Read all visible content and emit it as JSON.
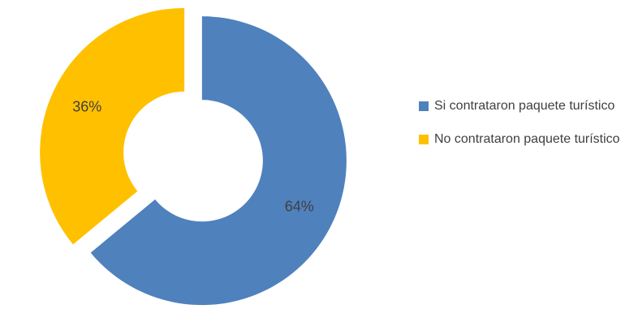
{
  "chart_data": {
    "type": "pie",
    "variant": "donut-exploded",
    "title": "",
    "series": [
      {
        "name": "Si contrataron paquete turístico",
        "value": 64,
        "label": "64%",
        "color": "#4F81BD"
      },
      {
        "name": "No contrataron paquete turístico",
        "value": 36,
        "label": "36%",
        "color": "#FFC000"
      }
    ],
    "legend_position": "right"
  }
}
